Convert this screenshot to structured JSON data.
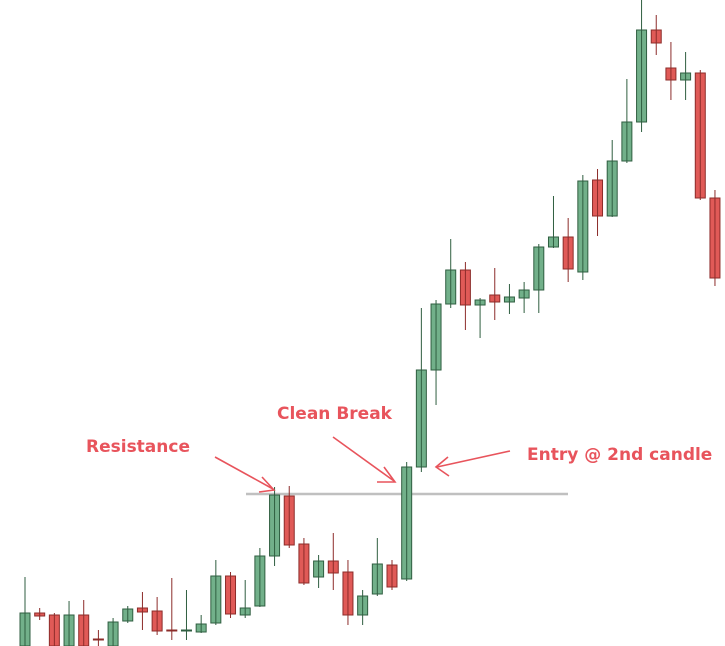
{
  "chart_data": {
    "type": "candlestick",
    "open": [
      0,
      33,
      31,
      0,
      31,
      7,
      0,
      25,
      38,
      35,
      16,
      15,
      14,
      23,
      70,
      31,
      40,
      90,
      150,
      102,
      69,
      85,
      74,
      31,
      52,
      81,
      67,
      179,
      276,
      342,
      376,
      341,
      351,
      344,
      348,
      356,
      399,
      409,
      374,
      466,
      430,
      485,
      524,
      616,
      578,
      566,
      573,
      448
    ],
    "high": [
      69,
      38,
      33,
      45,
      46,
      16,
      28,
      40,
      54,
      49,
      68,
      56,
      31,
      86,
      74,
      66,
      98,
      159,
      160,
      108,
      91,
      113,
      86,
      56,
      108,
      86,
      184,
      338,
      346,
      407,
      384,
      348,
      378,
      362,
      364,
      402,
      450,
      428,
      471,
      477,
      506,
      567,
      646,
      631,
      604,
      594,
      576,
      456
    ],
    "low": [
      0,
      26,
      0,
      0,
      0,
      0,
      0,
      23,
      16,
      11,
      6,
      6,
      13,
      21,
      28,
      28,
      39,
      80,
      98,
      61,
      58,
      56,
      21,
      21,
      50,
      56,
      65,
      174,
      241,
      338,
      316,
      308,
      326,
      332,
      333,
      333,
      398,
      364,
      366,
      410,
      429,
      483,
      514,
      591,
      546,
      546,
      446,
      360
    ],
    "close": [
      33,
      30,
      0,
      31,
      0,
      6,
      24,
      37,
      34,
      15,
      15,
      16,
      22,
      70,
      32,
      38,
      90,
      151,
      101,
      63,
      85,
      73,
      31,
      50,
      82,
      59,
      179,
      276,
      342,
      376,
      341,
      346,
      344,
      349,
      356,
      399,
      409,
      377,
      465,
      430,
      485,
      524,
      616,
      603,
      566,
      573,
      448,
      368
    ],
    "up_color": "#72b08a",
    "down_color": "#e05a57",
    "ylim": [
      0,
      646
    ],
    "resistance": 152,
    "resistance_color": "#c0c0c0",
    "annotations": [
      "Resistance",
      "Clean Break",
      "Entry @ 2nd candle"
    ],
    "annotation_color": "#e8545c"
  }
}
